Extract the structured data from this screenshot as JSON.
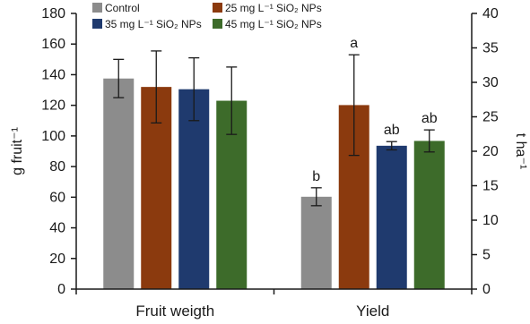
{
  "chart_data": {
    "type": "bar",
    "categories": [
      "Fruit weigth",
      "Yield"
    ],
    "ylabel_left": "g fruit⁻¹",
    "ylabel_right": "t ha⁻¹",
    "ylim_left": [
      0,
      180
    ],
    "ylim_right": [
      0,
      40
    ],
    "yticks_left": [
      "0",
      "20",
      "40",
      "60",
      "80",
      "100",
      "120",
      "140",
      "160",
      "180"
    ],
    "yticks_right": [
      "0",
      "5",
      "10",
      "15",
      "20",
      "25",
      "30",
      "35",
      "40"
    ],
    "grid": false,
    "legend_position": "top",
    "series": [
      {
        "name": "Control",
        "color": "#8c8c8c",
        "values": [
          137.5,
          13.4
        ],
        "errors": [
          12.5,
          1.3
        ],
        "labels": [
          "",
          "b"
        ]
      },
      {
        "name": "25 mg L⁻¹ SiO₂ NPs",
        "color": "#8b3a0e",
        "values": [
          132,
          26.7
        ],
        "errors": [
          23.5,
          7.3
        ],
        "labels": [
          "",
          "a"
        ]
      },
      {
        "name": "35 mg L⁻¹ SiO₂ NPs",
        "color": "#1f3a6e",
        "values": [
          130.5,
          20.8
        ],
        "errors": [
          20.5,
          0.6
        ],
        "labels": [
          "",
          "ab"
        ]
      },
      {
        "name": "45 mg L⁻¹ SiO₂ NPs",
        "color": "#3d6b2a",
        "values": [
          123,
          21.5
        ],
        "errors": [
          22,
          1.6
        ],
        "labels": [
          "",
          "ab"
        ]
      }
    ]
  }
}
